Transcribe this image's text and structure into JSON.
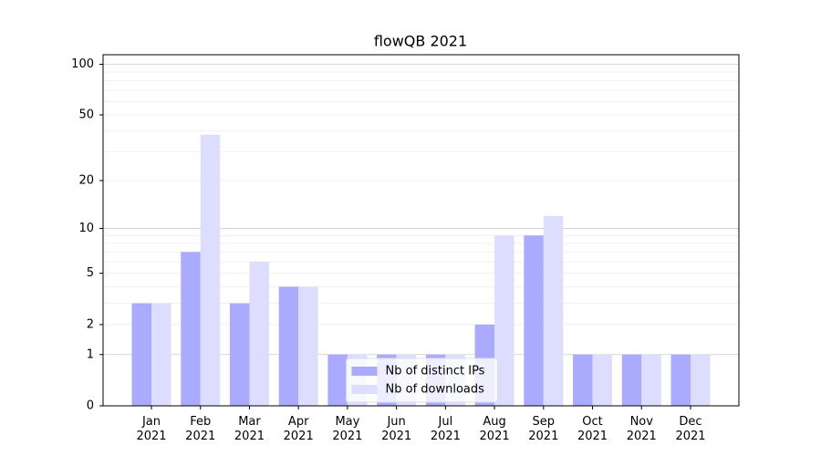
{
  "chart_data": {
    "type": "bar",
    "title": "flowQB 2021",
    "categories": [
      "Jan\n2021",
      "Feb\n2021",
      "Mar\n2021",
      "Apr\n2021",
      "May\n2021",
      "Jun\n2021",
      "Jul\n2021",
      "Aug\n2021",
      "Sep\n2021",
      "Oct\n2021",
      "Nov\n2021",
      "Dec\n2021"
    ],
    "series": [
      {
        "name": "Nb of distinct IPs",
        "color": "#aaaaff",
        "values": [
          3,
          7,
          3,
          4,
          1,
          1,
          1,
          2,
          9,
          1,
          1,
          1
        ]
      },
      {
        "name": "Nb of downloads",
        "color": "#ddddff",
        "values": [
          3,
          38,
          6,
          4,
          1,
          1,
          1,
          9,
          12,
          1,
          1,
          1
        ]
      }
    ],
    "yscale": "log1p",
    "ylim": [
      0,
      114
    ],
    "yticks": [
      0,
      1,
      2,
      5,
      10,
      20,
      50,
      100
    ],
    "minor_yticks": [
      3,
      4,
      6,
      7,
      8,
      9,
      30,
      40,
      60,
      70,
      80,
      90
    ],
    "major_grid": [
      1,
      10,
      100
    ],
    "grid": true,
    "legend": "lower center"
  }
}
